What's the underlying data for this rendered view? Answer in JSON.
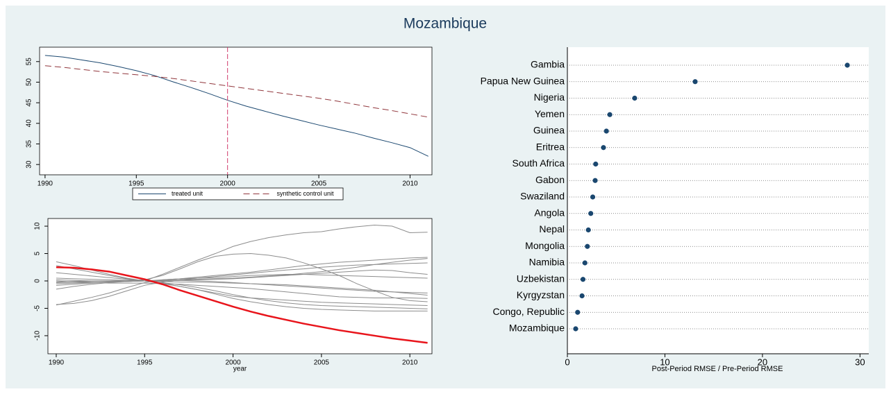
{
  "title": "Mozambique",
  "chart_data": [
    {
      "type": "line",
      "x": [
        1990,
        1991,
        1992,
        1993,
        1994,
        1995,
        1996,
        1997,
        1998,
        1999,
        2000,
        2001,
        2002,
        2003,
        2004,
        2005,
        2006,
        2007,
        2008,
        2009,
        2010,
        2011
      ],
      "series": [
        {
          "name": "treated unit",
          "color": "#1a476f",
          "values": [
            56.5,
            56.1,
            55.4,
            54.7,
            53.8,
            52.8,
            51.6,
            50.1,
            48.7,
            47.2,
            45.6,
            44.2,
            43.0,
            41.8,
            40.7,
            39.6,
            38.6,
            37.6,
            36.4,
            35.3,
            34.1,
            32.0
          ]
        },
        {
          "name": "synthetic control unit",
          "color": "#90353b",
          "dash": "9 5",
          "values": [
            54.0,
            53.6,
            53.1,
            52.6,
            52.2,
            51.8,
            51.4,
            50.9,
            50.3,
            49.7,
            49.1,
            48.5,
            47.9,
            47.3,
            46.7,
            46.1,
            45.4,
            44.6,
            43.8,
            43.1,
            42.3,
            41.5
          ]
        }
      ],
      "xlim": [
        1989.7,
        2011.2
      ],
      "xticks": [
        1990,
        1995,
        2000,
        2005,
        2010
      ],
      "ylim": [
        27.5,
        58.5
      ],
      "yticks": [
        30,
        35,
        40,
        45,
        50,
        55
      ],
      "xline": 2000,
      "xline_color": "#d03a6a",
      "legend": "bottom"
    },
    {
      "type": "line",
      "x_label": "year",
      "x": [
        1990,
        1991,
        1992,
        1993,
        1994,
        1995,
        1996,
        1997,
        1998,
        1999,
        2000,
        2001,
        2002,
        2003,
        2004,
        2005,
        2006,
        2007,
        2008,
        2009,
        2010,
        2011
      ],
      "series": [
        {
          "color": "#8c8c8c",
          "values": [
            -0.5,
            -0.4,
            -0.3,
            -0.2,
            -0.1,
            0,
            1.2,
            2.5,
            3.8,
            5.0,
            6.3,
            7.2,
            7.9,
            8.4,
            8.8,
            9.0,
            9.5,
            9.9,
            10.2,
            10.0,
            8.8,
            8.9
          ]
        },
        {
          "color": "#8c8c8c",
          "values": [
            -0.3,
            -0.2,
            -0.1,
            0,
            0.1,
            0.2,
            1.0,
            2.2,
            3.5,
            4.5,
            4.9,
            5.0,
            4.7,
            4.2,
            3.3,
            2.2,
            1.0,
            -0.5,
            -1.8,
            -3.0,
            -3.6,
            -3.8
          ]
        },
        {
          "color": "#8c8c8c",
          "values": [
            3.5,
            2.8,
            2.0,
            1.2,
            0.5,
            0,
            0.2,
            0.4,
            0.7,
            1.0,
            1.3,
            1.6,
            2.0,
            2.4,
            2.8,
            3.1,
            3.4,
            3.6,
            3.8,
            4.0,
            4.2,
            4.3
          ]
        },
        {
          "color": "#8c8c8c",
          "values": [
            -4.3,
            -4.1,
            -3.6,
            -2.8,
            -1.8,
            -0.8,
            -0.2,
            0.2,
            0.5,
            0.8,
            1.1,
            1.4,
            1.7,
            2.0,
            2.2,
            2.5,
            2.7,
            2.9,
            3.0,
            3.1,
            3.2,
            3.3
          ]
        },
        {
          "color": "#8c8c8c",
          "values": [
            -4.4,
            -3.7,
            -3.0,
            -2.2,
            -1.2,
            -0.3,
            0.2,
            0.4,
            0.5,
            0.6,
            0.8,
            1.0,
            1.1,
            1.2,
            1.2,
            1.1,
            1.0,
            0.9,
            0.8,
            0.7,
            0.6,
            0.5
          ]
        },
        {
          "color": "#8c8c8c",
          "values": [
            2.8,
            2.2,
            1.6,
            1.0,
            0.4,
            0,
            -0.5,
            -1.0,
            -1.6,
            -2.2,
            -2.8,
            -3.1,
            -3.3,
            -3.5,
            -3.7,
            -3.9,
            -4.0,
            -4.1,
            -4.2,
            -4.3,
            -4.4,
            -4.5
          ]
        },
        {
          "color": "#8c8c8c",
          "values": [
            0.5,
            0.4,
            0.3,
            0.2,
            0.1,
            0,
            -0.3,
            -0.7,
            -1.2,
            -1.8,
            -2.5,
            -3.1,
            -3.6,
            -4.0,
            -4.3,
            -4.5,
            -4.6,
            -4.7,
            -4.8,
            -4.9,
            -5.0,
            -5.1
          ]
        },
        {
          "color": "#8c8c8c",
          "values": [
            -1.5,
            -1.0,
            -0.6,
            -0.3,
            -0.1,
            0,
            -0.4,
            -1.0,
            -1.6,
            -2.4,
            -3.2,
            -3.8,
            -4.3,
            -4.7,
            -5.0,
            -5.2,
            -5.3,
            -5.4,
            -5.5,
            -5.5,
            -5.5,
            -5.5
          ]
        },
        {
          "color": "#8c8c8c",
          "values": [
            -0.8,
            -0.6,
            -0.4,
            -0.2,
            -0.1,
            0,
            0,
            0.1,
            0.2,
            0.3,
            0.4,
            0.6,
            0.8,
            1.0,
            1.2,
            1.4,
            1.6,
            1.8,
            2.0,
            1.9,
            1.5,
            1.2
          ]
        },
        {
          "color": "#8c8c8c",
          "values": [
            0,
            -0.2,
            -0.3,
            -0.4,
            -0.4,
            -0.4,
            -0.5,
            -0.6,
            -0.8,
            -1.0,
            -1.2,
            -1.4,
            -1.7,
            -2.0,
            -2.3,
            -2.6,
            -2.9,
            -3.0,
            -3.1,
            -3.1,
            -3.1,
            -3.2
          ]
        },
        {
          "color": "#8c8c8c",
          "values": [
            1.5,
            1.2,
            0.9,
            0.6,
            0.3,
            0,
            -0.1,
            -0.2,
            -0.2,
            -0.3,
            -0.4,
            -0.5,
            -0.6,
            -0.7,
            -0.9,
            -1.1,
            -1.3,
            -1.5,
            -1.7,
            -2.0,
            -2.3,
            -2.6
          ]
        },
        {
          "color": "#8c8c8c",
          "values": [
            -0.2,
            -0.1,
            0,
            0,
            0,
            0,
            0.1,
            0.2,
            0.3,
            0.4,
            0.5,
            0.7,
            0.9,
            1.1,
            1.4,
            1.7,
            2.1,
            2.5,
            3.0,
            3.4,
            3.8,
            4.1
          ]
        },
        {
          "color": "#8c8c8c",
          "values": [
            0.2,
            0.1,
            0,
            -0.1,
            -0.1,
            0,
            0.1,
            0.1,
            0,
            -0.1,
            -0.3,
            -0.5,
            -0.7,
            -0.9,
            -1.1,
            -1.3,
            -1.5,
            -1.7,
            -1.9,
            -2.0,
            -2.1,
            -2.2
          ]
        },
        {
          "color": "#e8141b",
          "width": 2.5,
          "values": [
            2.5,
            2.4,
            2.1,
            1.7,
            1.0,
            0.3,
            -0.6,
            -1.7,
            -2.7,
            -3.7,
            -4.7,
            -5.6,
            -6.4,
            -7.1,
            -7.8,
            -8.4,
            -9.0,
            -9.5,
            -10.0,
            -10.5,
            -10.9,
            -11.3
          ]
        }
      ],
      "xlim": [
        1989.53,
        2011.25
      ],
      "xticks": [
        1990,
        1995,
        2000,
        2005,
        2010
      ],
      "ylim": [
        -13.3,
        11.4
      ],
      "yticks": [
        -10,
        -5,
        0,
        5,
        10
      ]
    },
    {
      "type": "dot",
      "x_label": "Post-Period RMSE / Pre-Period RMSE",
      "categories": [
        "Gambia",
        "Papua New Guinea",
        "Nigeria",
        "Yemen",
        "Guinea",
        "Eritrea",
        "South Africa",
        "Gabon",
        "Swaziland",
        "Angola",
        "Nepal",
        "Mongolia",
        "Namibia",
        "Uzbekistan",
        "Kyrgyzstan",
        "Congo, Republic",
        "Mozambique"
      ],
      "values": [
        28.7,
        13.1,
        6.9,
        4.35,
        4.0,
        3.7,
        2.9,
        2.85,
        2.6,
        2.4,
        2.15,
        2.05,
        1.8,
        1.6,
        1.5,
        1.05,
        0.85
      ],
      "color": "#1a476f",
      "xlim": [
        0,
        30.9
      ],
      "xticks": [
        0,
        10,
        20,
        30
      ]
    }
  ]
}
